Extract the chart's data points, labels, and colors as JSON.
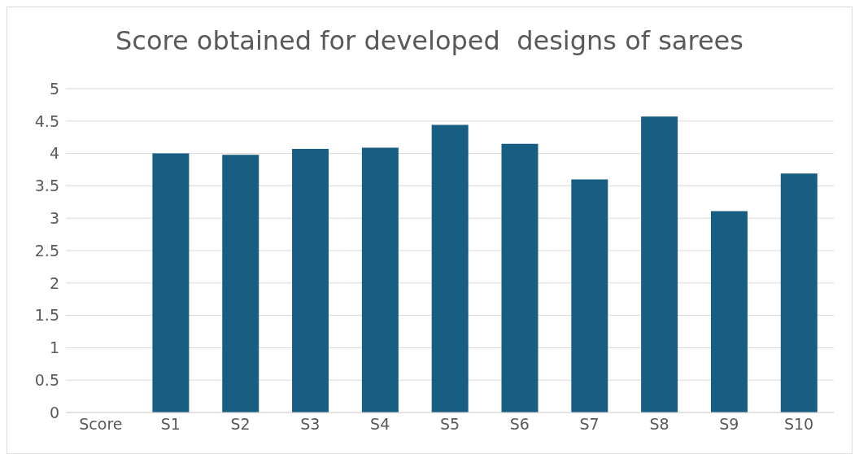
{
  "chart_data": {
    "type": "bar",
    "title": "Score obtained for developed  designs of sarees",
    "categories": [
      "Score",
      "S1",
      "S2",
      "S3",
      "S4",
      "S5",
      "S6",
      "S7",
      "S8",
      "S9",
      "S10"
    ],
    "values": [
      null,
      4.0,
      3.98,
      4.07,
      4.09,
      4.44,
      4.15,
      3.6,
      4.57,
      3.11,
      3.69
    ],
    "color": "#175e82",
    "ylim": [
      0,
      5
    ],
    "yticks": [
      0,
      0.5,
      1,
      1.5,
      2,
      2.5,
      3,
      3.5,
      4,
      4.5,
      5
    ],
    "grid": "y"
  }
}
